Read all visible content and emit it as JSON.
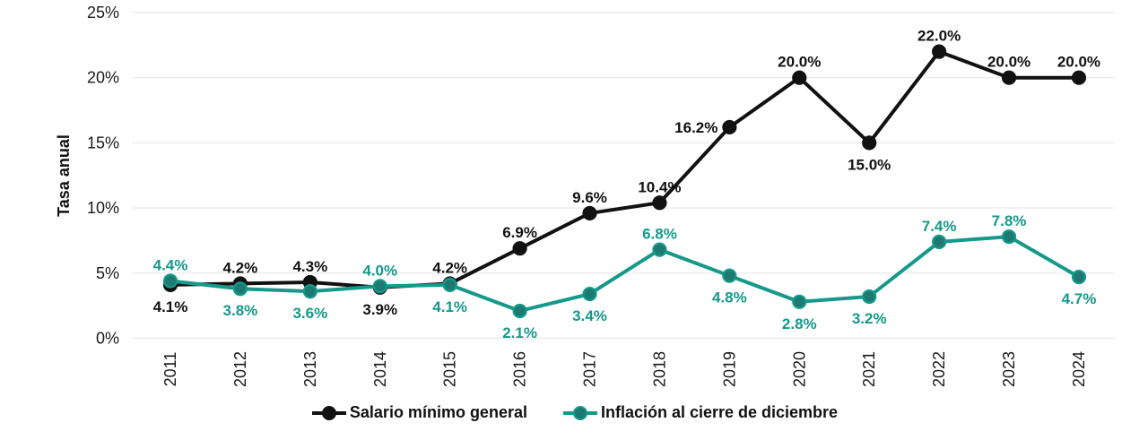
{
  "chart_data": {
    "type": "line",
    "title": "",
    "xlabel": "",
    "ylabel": "Tasa anual",
    "ylim": [
      0,
      25
    ],
    "grid": "horizontal",
    "legend_position": "bottom",
    "categories": [
      "2011",
      "2012",
      "2013",
      "2014",
      "2015",
      "2016",
      "2017",
      "2018",
      "2019",
      "2020",
      "2021",
      "2022",
      "2023",
      "2024"
    ],
    "y_ticks": [
      0,
      5,
      10,
      15,
      20,
      25
    ],
    "y_tick_labels": [
      "0%",
      "5%",
      "10%",
      "15%",
      "20%",
      "25%"
    ],
    "series": [
      {
        "name": "Salario mínimo general",
        "color": "#111111",
        "marker_fill": "#111111",
        "values": [
          4.1,
          4.2,
          4.3,
          3.9,
          4.2,
          6.9,
          9.6,
          10.4,
          16.2,
          20.0,
          15.0,
          22.0,
          20.0,
          20.0
        ],
        "labels": [
          "4.1%",
          "4.2%",
          "4.3%",
          "3.9%",
          "4.2%",
          "6.9%",
          "9.6%",
          "10.4%",
          "16.2%",
          "20.0%",
          "15.0%",
          "22.0%",
          "20.0%",
          "20.0%"
        ],
        "label_positions": [
          "below",
          "above",
          "above",
          "below",
          "above",
          "above",
          "above",
          "above",
          "left",
          "above",
          "below",
          "above",
          "above",
          "above"
        ]
      },
      {
        "name": "Inflación al cierre de diciembre",
        "color": "#14998a",
        "marker_fill": "#1d7a72",
        "values": [
          4.4,
          3.8,
          3.6,
          4.0,
          4.1,
          2.1,
          3.4,
          6.8,
          4.8,
          2.8,
          3.2,
          7.4,
          7.8,
          4.7
        ],
        "labels": [
          "4.4%",
          "3.8%",
          "3.6%",
          "4.0%",
          "4.1%",
          "2.1%",
          "3.4%",
          "6.8%",
          "4.8%",
          "2.8%",
          "3.2%",
          "7.4%",
          "7.8%",
          "4.7%"
        ],
        "label_positions": [
          "above",
          "below",
          "below",
          "above",
          "below",
          "below",
          "below",
          "above",
          "below",
          "below",
          "below",
          "above",
          "above",
          "below"
        ]
      }
    ],
    "colors": {
      "grid": "#edecec",
      "axis_text": "#1a1a1a",
      "background": "#ffffff"
    }
  }
}
